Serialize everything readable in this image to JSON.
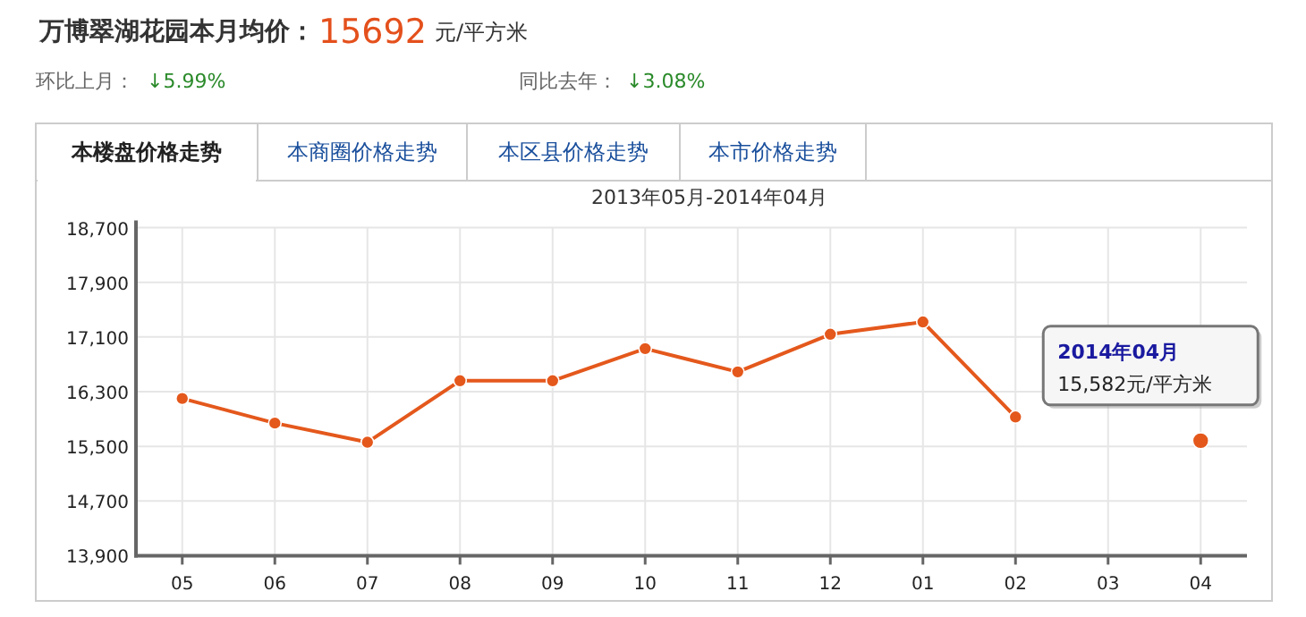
{
  "chart_data": {
    "type": "line",
    "title": "万博翠湖花园本月均价：",
    "subtitle": "2013年05月-2014年04月",
    "annotations": [
      "15692",
      "元/平方米",
      "环比上月：",
      "↓5.99%",
      "同比去年：",
      "↓3.08%",
      "本楼盘价格走势",
      "本商圈价格走势",
      "本区县价格走势",
      "本市价格走势",
      {
        "text": "2014年04月\n15,582元/平方米",
        "x": "04",
        "y": 15582
      }
    ],
    "categories": [
      "05",
      "06",
      "07",
      "08",
      "09",
      "10",
      "11",
      "12",
      "01",
      "02",
      "03",
      "04"
    ],
    "series": [
      {
        "color": "#e4581c",
        "values": [
          16200,
          15840,
          15560,
          16460,
          16460,
          16930,
          16590,
          17140,
          17320,
          15930,
          null,
          15582
        ]
      }
    ],
    "ylim": [
      13900,
      18700
    ],
    "yticks": [
      {
        "value": 13900,
        "label": "13,900"
      },
      {
        "value": 14700,
        "label": "14,700"
      },
      {
        "value": 15500,
        "label": "15,500"
      },
      {
        "value": 16300,
        "label": "16,300"
      },
      {
        "value": 17100,
        "label": "17,100"
      },
      {
        "value": 17900,
        "label": "17,900"
      },
      {
        "value": 18700,
        "label": "18,700"
      }
    ],
    "grid": true,
    "marker": "circle",
    "line_style": "solid"
  }
}
